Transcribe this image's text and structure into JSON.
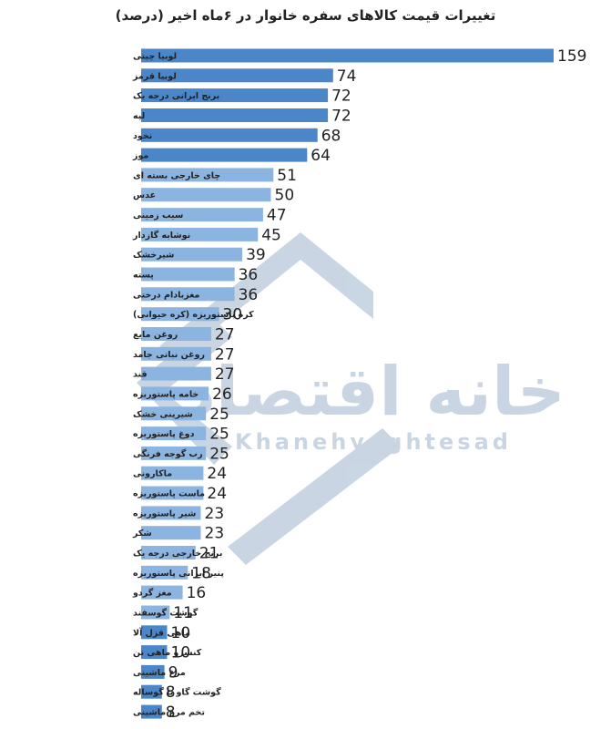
{
  "chart_data": {
    "type": "bar",
    "orientation": "horizontal",
    "title": "تغییرات قیمت کالاهای سفره خانوار در ۶ماه اخیر (درصد)",
    "categories": [
      "لوبیا چیتی",
      "لوبیا قرمز",
      "برنج ایرانی درجه یک",
      "لپه",
      "نخود",
      "موز",
      "چای خارجی بسته ای",
      "عدس",
      "سیب زمینی",
      "نوشابه گازدار",
      "شیرخشک",
      "پسته",
      "مغزبادام درختی",
      "کره پاستوریزه (کره حیوانی)",
      "روغن مایع",
      "روغن نباتی جامد",
      "قند",
      "خامه پاستوریزه",
      "شیرینی خشک",
      "دوغ پاستوریزه",
      "رب گوجه فرنگی",
      "ماکارونی",
      "ماست پاستوریزه",
      "شیر پاستوریزه",
      "شکر",
      "برنج خارجی درجه یک",
      "پنیر ایرانی پاستوریزه",
      "مغز گردو",
      "گوشت گوسفند",
      "ماهی قزل آلا",
      "کنسرو ماهی تن",
      "مرغ ماشینی",
      "گوشت گاو یا گوساله",
      "تخم مرغ ماشینی"
    ],
    "values": [
      159,
      74,
      72,
      72,
      68,
      64,
      51,
      50,
      47,
      45,
      39,
      36,
      36,
      30,
      27,
      27,
      27,
      26,
      25,
      25,
      25,
      24,
      24,
      23,
      23,
      21,
      18,
      16,
      11,
      10,
      10,
      9,
      8,
      8
    ],
    "bar_colors": [
      "#4a86c8",
      "#4a86c8",
      "#4a86c8",
      "#4a86c8",
      "#4a86c8",
      "#4a86c8",
      "#8cb4e0",
      "#8cb4e0",
      "#8cb4e0",
      "#8cb4e0",
      "#8cb4e0",
      "#8cb4e0",
      "#8cb4e0",
      "#8cb4e0",
      "#8cb4e0",
      "#8cb4e0",
      "#8cb4e0",
      "#8cb4e0",
      "#8cb4e0",
      "#8cb4e0",
      "#8cb4e0",
      "#8cb4e0",
      "#8cb4e0",
      "#8cb4e0",
      "#8cb4e0",
      "#8cb4e0",
      "#8cb4e0",
      "#8cb4e0",
      "#8cb4e0",
      "#4a86c8",
      "#4a86c8",
      "#4a86c8",
      "#4a86c8",
      "#4a86c8"
    ],
    "xlim": [
      0,
      159
    ],
    "grid": false,
    "legend": "none"
  },
  "watermark": {
    "text_fa": "خانه اقتصاد",
    "text_en": "Khanehyeghtesad",
    "color": "#9db4cc"
  }
}
